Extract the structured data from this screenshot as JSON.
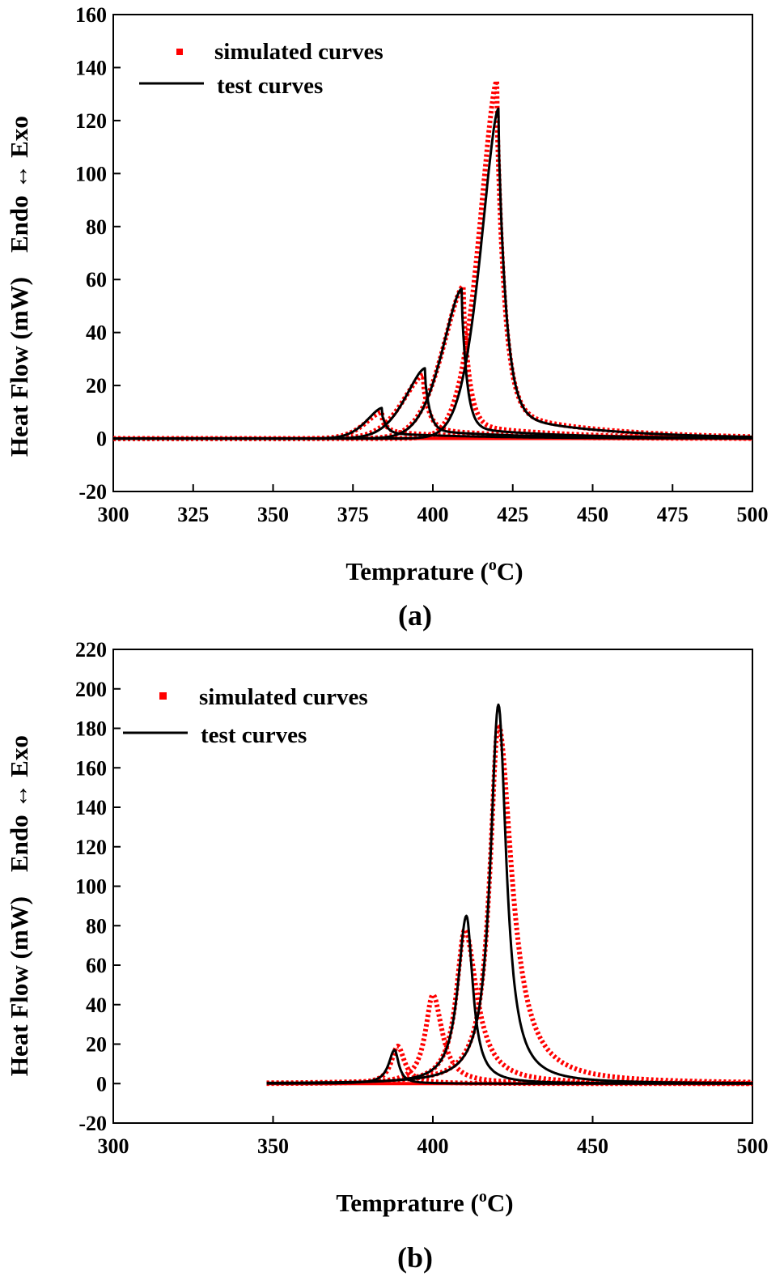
{
  "chart_data": [
    {
      "type": "line",
      "panel_label": "(a)",
      "title": "",
      "xlabel": "Temprature (",
      "xlabel_sup": "o",
      "xlabel_unit": "C)",
      "ylabel": "Heat Flow (mW)",
      "ylabel_direction": "Endo ↔ Exo",
      "xlim": [
        300,
        500
      ],
      "ylim": [
        -20,
        160
      ],
      "xticks": [
        300,
        325,
        350,
        375,
        400,
        425,
        450,
        475,
        500
      ],
      "yticks": [
        -20,
        0,
        20,
        40,
        60,
        80,
        100,
        120,
        140,
        160
      ],
      "legend": {
        "placement": "top-left",
        "entries": [
          "simulated curves",
          "test curves"
        ]
      },
      "colors": {
        "simulated": "#ff0000",
        "test": "#000000"
      },
      "series": [
        {
          "name": "test curves",
          "peak_x": 384,
          "peak_y": 11.5,
          "onset": 365,
          "rise": 7,
          "fall": 1.5,
          "tail": 2
        },
        {
          "name": "test curves",
          "peak_x": 397.5,
          "peak_y": 26.5,
          "onset": 360,
          "rise": 9,
          "fall": 1.6,
          "tail": 3
        },
        {
          "name": "test curves",
          "peak_x": 409,
          "peak_y": 56.5,
          "onset": 360,
          "rise": 9,
          "fall": 1.7,
          "tail": 4
        },
        {
          "name": "test curves",
          "peak_x": 420.5,
          "peak_y": 124.5,
          "onset": 360,
          "rise": 8,
          "fall": 2.5,
          "tail": 9
        },
        {
          "name": "simulated curves",
          "peak_x": 384,
          "peak_y": 10,
          "onset": 362,
          "rise": 7.5,
          "fall": 1.8,
          "tail": 2.5
        },
        {
          "name": "simulated curves",
          "peak_x": 397,
          "peak_y": 24,
          "onset": 358,
          "rise": 9.5,
          "fall": 2,
          "tail": 3.5
        },
        {
          "name": "simulated curves",
          "peak_x": 409.5,
          "peak_y": 57.5,
          "onset": 358,
          "rise": 9.5,
          "fall": 2,
          "tail": 5
        },
        {
          "name": "simulated curves",
          "peak_x": 420,
          "peak_y": 135,
          "onset": 358,
          "rise": 8,
          "fall": 2.5,
          "tail": 10
        }
      ]
    },
    {
      "type": "line",
      "panel_label": "(b)",
      "title": "",
      "xlabel": "Temprature (",
      "xlabel_sup": "o",
      "xlabel_unit": "C)",
      "ylabel": "Heat Flow (mW)",
      "ylabel_direction": "Endo ↔ Exo",
      "xlim": [
        300,
        500
      ],
      "ylim": [
        -20,
        220
      ],
      "xticks": [
        300,
        350,
        400,
        450,
        500
      ],
      "yticks": [
        -20,
        0,
        20,
        40,
        60,
        80,
        100,
        120,
        140,
        160,
        180,
        200,
        220
      ],
      "legend": {
        "placement": "top-left",
        "entries": [
          "simulated curves",
          "test curves"
        ]
      },
      "colors": {
        "simulated": "#ff0000",
        "test": "#000000"
      },
      "series": [
        {
          "name": "test curves",
          "peak_x": 388,
          "peak_y": 17,
          "x_start": 348,
          "rise": 2.2,
          "fall": 1.6,
          "tail": 0
        },
        {
          "name": "test curves",
          "peak_x": 410.5,
          "peak_y": 85,
          "x_start": 348,
          "rise": 3.2,
          "fall": 2.4,
          "tail": 0
        },
        {
          "name": "test curves",
          "peak_x": 420.5,
          "peak_y": 192,
          "x_start": 348,
          "rise": 3,
          "fall": 3,
          "tail": 0
        },
        {
          "name": "simulated curves",
          "peak_x": 389,
          "peak_y": 19,
          "x_start": 348,
          "rise": 2.4,
          "fall": 2.6,
          "tail": 0
        },
        {
          "name": "simulated curves",
          "peak_x": 400,
          "peak_y": 45,
          "x_start": 348,
          "rise": 2.8,
          "fall": 3.5,
          "tail": 0
        },
        {
          "name": "simulated curves",
          "peak_x": 410,
          "peak_y": 78,
          "x_start": 348,
          "rise": 3.2,
          "fall": 4.5,
          "tail": 0
        },
        {
          "name": "simulated curves",
          "peak_x": 420.5,
          "peak_y": 182,
          "x_start": 348,
          "rise": 3.2,
          "fall": 5,
          "tail": 0
        }
      ]
    }
  ]
}
